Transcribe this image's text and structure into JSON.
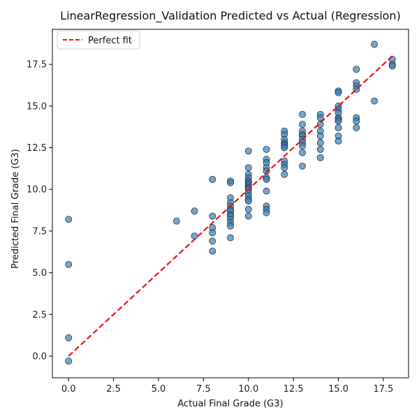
{
  "chart_data": {
    "type": "scatter",
    "title": "LinearRegression_Validation Predicted vs Actual (Regression)",
    "xlabel": "Actual Final Grade (G3)",
    "ylabel": "Predicted Final Grade (G3)",
    "xlim": [
      -0.9,
      18.9
    ],
    "ylim": [
      -1.3,
      19.6
    ],
    "xticks": [
      0.0,
      2.5,
      5.0,
      7.5,
      10.0,
      12.5,
      15.0,
      17.5
    ],
    "yticks": [
      0.0,
      2.5,
      5.0,
      7.5,
      10.0,
      12.5,
      15.0,
      17.5
    ],
    "xtick_labels": [
      "0.0",
      "2.5",
      "5.0",
      "7.5",
      "10.0",
      "12.5",
      "15.0",
      "17.5"
    ],
    "ytick_labels": [
      "0.0",
      "2.5",
      "5.0",
      "7.5",
      "10.0",
      "12.5",
      "15.0",
      "17.5"
    ],
    "grid": false,
    "legend_position": "top-left",
    "legend": [
      {
        "label": "Perfect fit",
        "style": "dashed",
        "color": "#ee1111"
      }
    ],
    "perfect_fit_line": {
      "x": [
        0,
        18
      ],
      "y": [
        0,
        18
      ],
      "color": "#ee1111"
    },
    "point_color": "#3c7fb1",
    "points": [
      [
        0,
        8.2
      ],
      [
        0,
        5.5
      ],
      [
        0,
        1.1
      ],
      [
        0,
        -0.3
      ],
      [
        6,
        8.1
      ],
      [
        7,
        8.7
      ],
      [
        7,
        7.2
      ],
      [
        8,
        10.6
      ],
      [
        8,
        8.4
      ],
      [
        8,
        7.7
      ],
      [
        8,
        7.4
      ],
      [
        8,
        6.9
      ],
      [
        8,
        6.3
      ],
      [
        9,
        10.5
      ],
      [
        9,
        10.4
      ],
      [
        9,
        9.5
      ],
      [
        9,
        9.2
      ],
      [
        9,
        9.0
      ],
      [
        9,
        8.8
      ],
      [
        9,
        8.7
      ],
      [
        9,
        8.5
      ],
      [
        9,
        8.4
      ],
      [
        9,
        8.2
      ],
      [
        9,
        8.0
      ],
      [
        9,
        7.8
      ],
      [
        9,
        7.1
      ],
      [
        10,
        12.3
      ],
      [
        10,
        11.3
      ],
      [
        10,
        10.9
      ],
      [
        10,
        10.7
      ],
      [
        10,
        10.5
      ],
      [
        10,
        10.4
      ],
      [
        10,
        10.3
      ],
      [
        10,
        10.2
      ],
      [
        10,
        10.1
      ],
      [
        10,
        10.0
      ],
      [
        10,
        9.8
      ],
      [
        10,
        9.6
      ],
      [
        10,
        9.4
      ],
      [
        10,
        9.3
      ],
      [
        10,
        8.8
      ],
      [
        10,
        8.4
      ],
      [
        11,
        12.4
      ],
      [
        11,
        11.8
      ],
      [
        11,
        11.6
      ],
      [
        11,
        11.3
      ],
      [
        11,
        11.1
      ],
      [
        11,
        10.7
      ],
      [
        11,
        10.6
      ],
      [
        11,
        9.9
      ],
      [
        11,
        9.0
      ],
      [
        11,
        8.8
      ],
      [
        11,
        8.6
      ],
      [
        12,
        13.5
      ],
      [
        12,
        13.3
      ],
      [
        12,
        13.0
      ],
      [
        12,
        12.8
      ],
      [
        12,
        12.7
      ],
      [
        12,
        12.6
      ],
      [
        12,
        12.5
      ],
      [
        12,
        11.7
      ],
      [
        12,
        11.5
      ],
      [
        12,
        11.3
      ],
      [
        12,
        10.9
      ],
      [
        13,
        14.5
      ],
      [
        13,
        13.9
      ],
      [
        13,
        13.5
      ],
      [
        13,
        13.3
      ],
      [
        13,
        13.2
      ],
      [
        13,
        13.0
      ],
      [
        13,
        12.8
      ],
      [
        13,
        12.6
      ],
      [
        13,
        12.2
      ],
      [
        13,
        11.4
      ],
      [
        14,
        14.5
      ],
      [
        14,
        14.3
      ],
      [
        14,
        13.9
      ],
      [
        14,
        13.5
      ],
      [
        14,
        13.2
      ],
      [
        14,
        12.8
      ],
      [
        14,
        12.4
      ],
      [
        14,
        11.9
      ],
      [
        15,
        15.9
      ],
      [
        15,
        15.8
      ],
      [
        15,
        15.0
      ],
      [
        15,
        14.8
      ],
      [
        15,
        14.6
      ],
      [
        15,
        14.3
      ],
      [
        15,
        14.2
      ],
      [
        15,
        14.1
      ],
      [
        15,
        13.7
      ],
      [
        15,
        13.2
      ],
      [
        15,
        12.9
      ],
      [
        16,
        17.2
      ],
      [
        16,
        16.4
      ],
      [
        16,
        16.2
      ],
      [
        16,
        16.0
      ],
      [
        16,
        14.3
      ],
      [
        16,
        14.1
      ],
      [
        16,
        13.7
      ],
      [
        17,
        18.7
      ],
      [
        17,
        15.3
      ],
      [
        18,
        17.8
      ],
      [
        18,
        17.5
      ],
      [
        18,
        17.4
      ]
    ]
  }
}
